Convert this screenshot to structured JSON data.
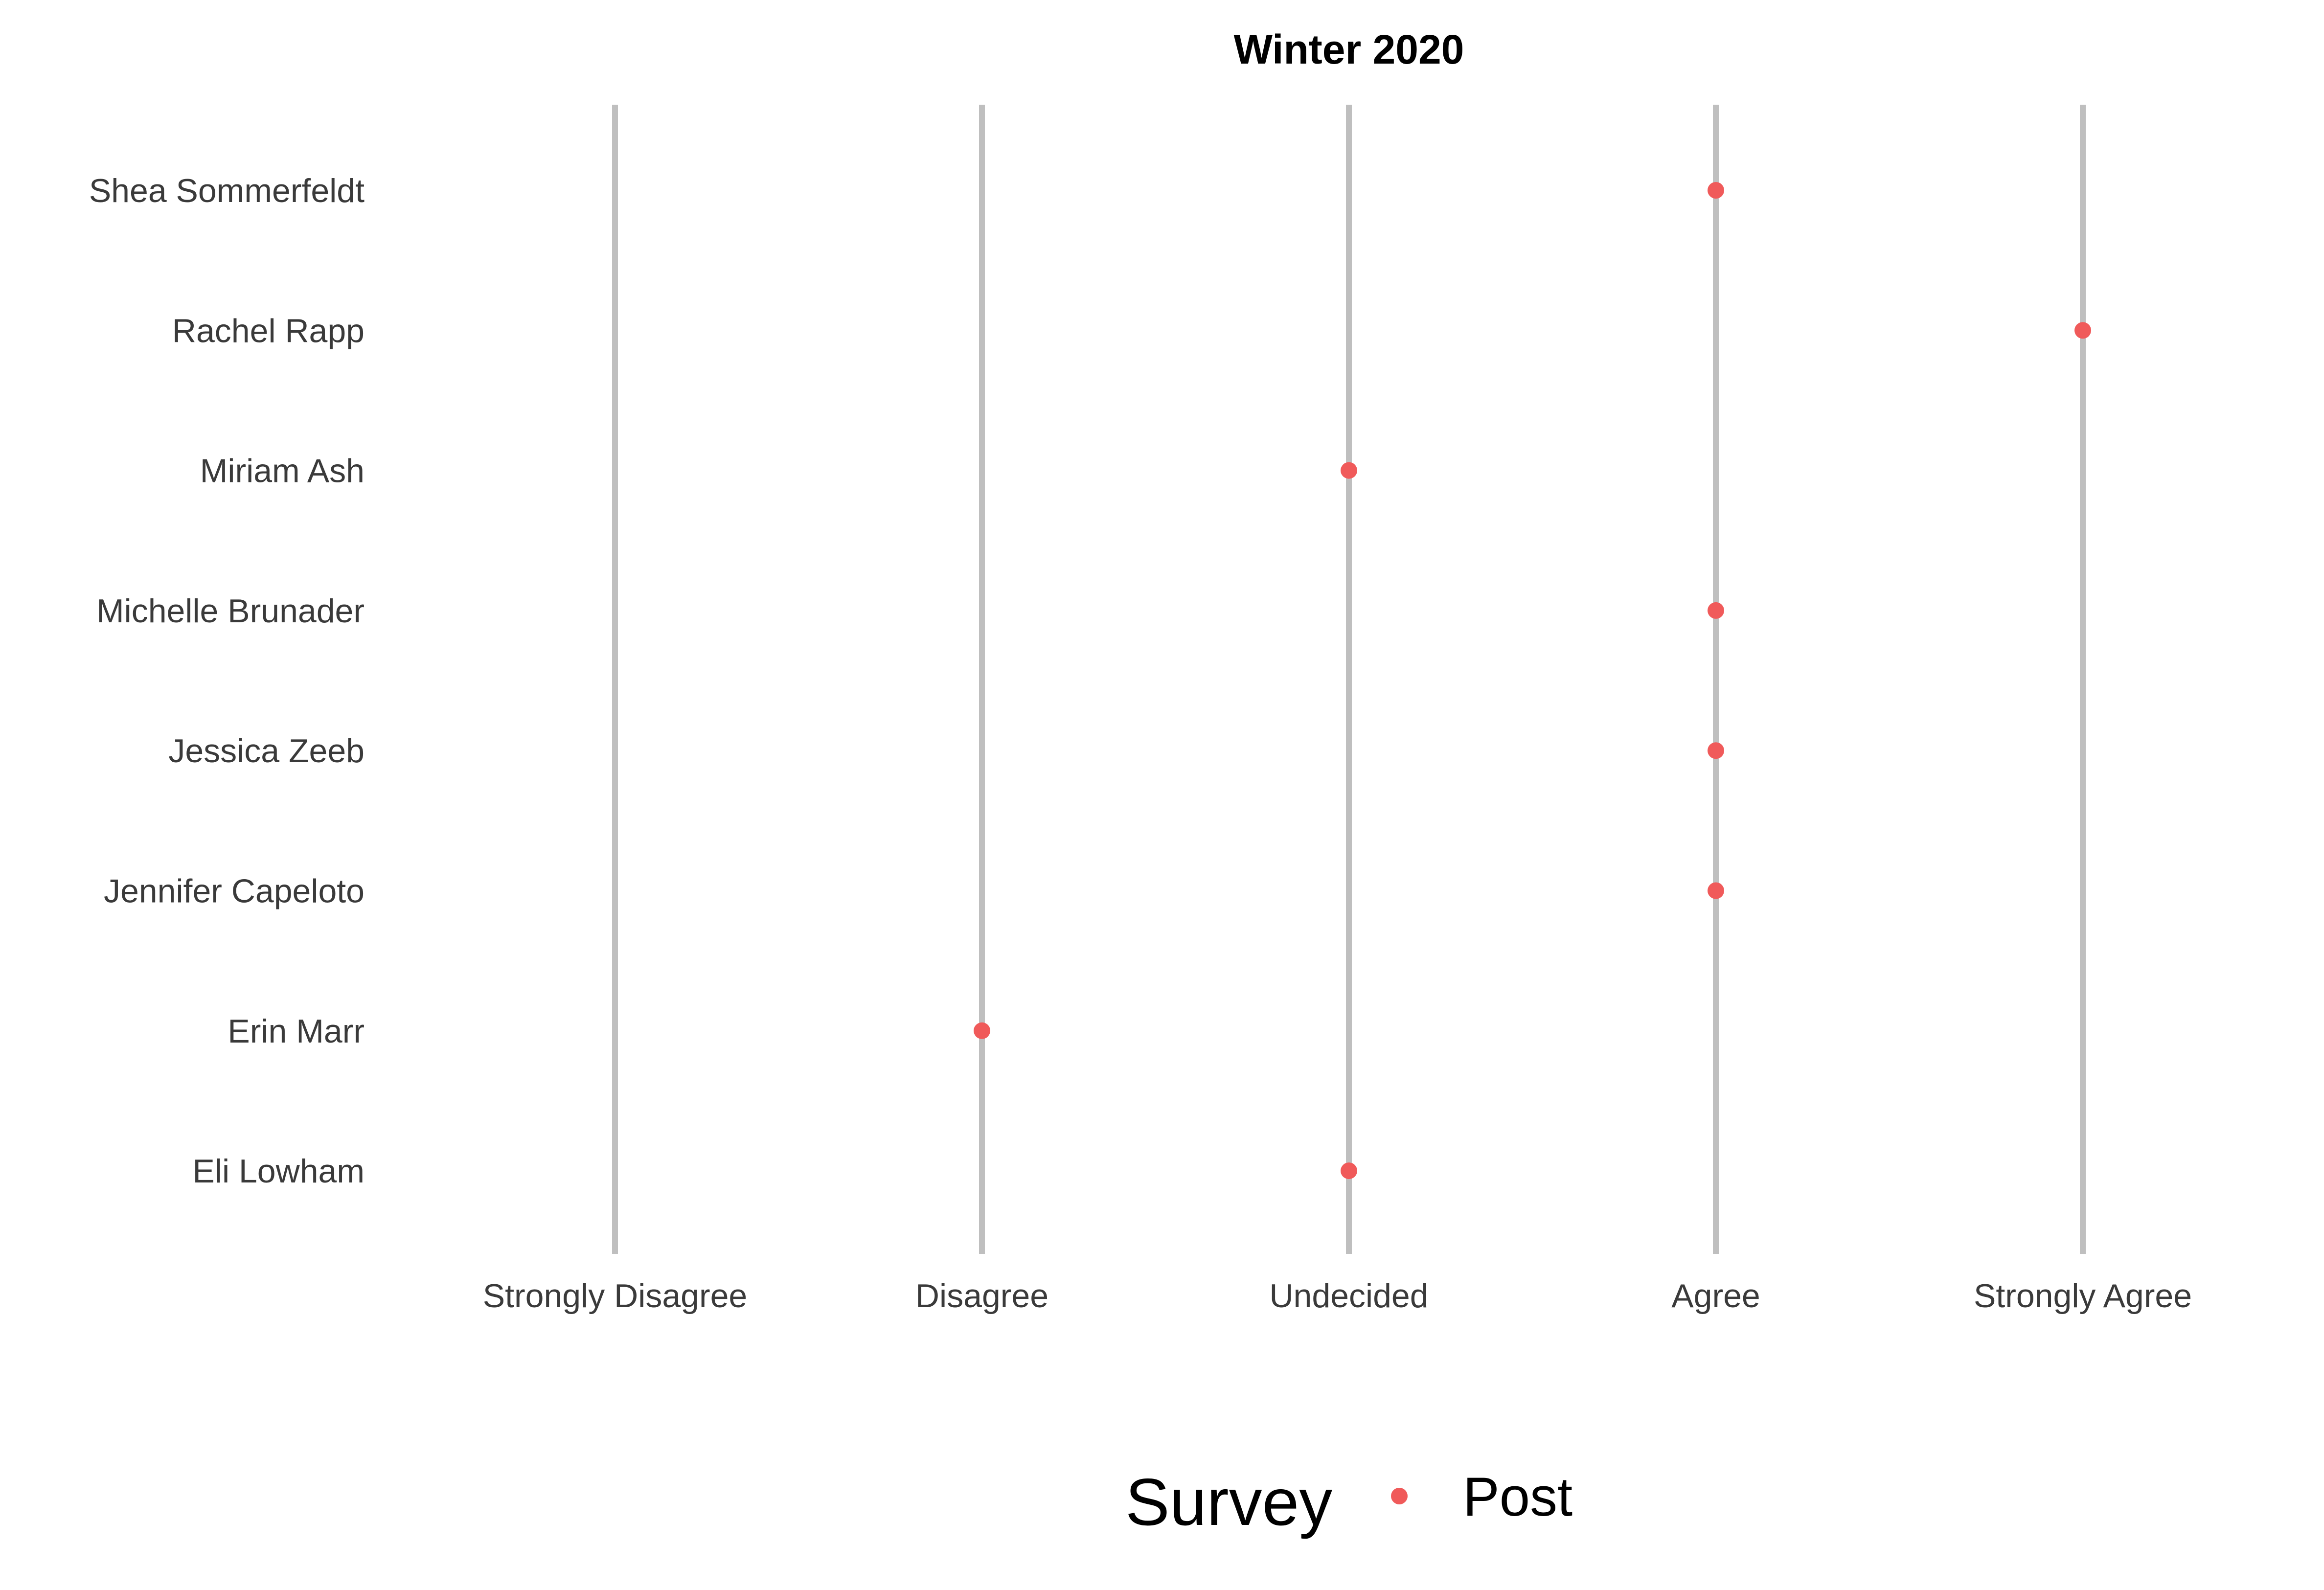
{
  "chart_data": {
    "type": "scatter",
    "title": "Winter 2020",
    "xlabel": "",
    "ylabel": "",
    "x_categories": [
      "Strongly Disagree",
      "Disagree",
      "Undecided",
      "Agree",
      "Strongly Agree"
    ],
    "y_categories": [
      "Shea Sommerfeldt",
      "Rachel Rapp",
      "Miriam Ash",
      "Michelle Brunader",
      "Jessica Zeeb",
      "Jennifer Capeloto",
      "Erin Marr",
      "Eli Lowham"
    ],
    "grid": "vertical lines at each x category",
    "legend": {
      "title": "Survey",
      "position": "bottom",
      "entries": [
        {
          "name": "Post",
          "color": "#f05a5a"
        }
      ]
    },
    "colors": {
      "post": "#f05a5a",
      "gridline": "#bfbfbf"
    },
    "series": [
      {
        "name": "Post",
        "points": [
          {
            "y": "Shea Sommerfeldt",
            "x": "Agree"
          },
          {
            "y": "Rachel Rapp",
            "x": "Strongly Agree"
          },
          {
            "y": "Miriam Ash",
            "x": "Undecided"
          },
          {
            "y": "Michelle Brunader",
            "x": "Agree"
          },
          {
            "y": "Jessica Zeeb",
            "x": "Agree"
          },
          {
            "y": "Jennifer Capeloto",
            "x": "Agree"
          },
          {
            "y": "Erin Marr",
            "x": "Disagree"
          },
          {
            "y": "Eli Lowham",
            "x": "Undecided"
          }
        ]
      }
    ]
  }
}
